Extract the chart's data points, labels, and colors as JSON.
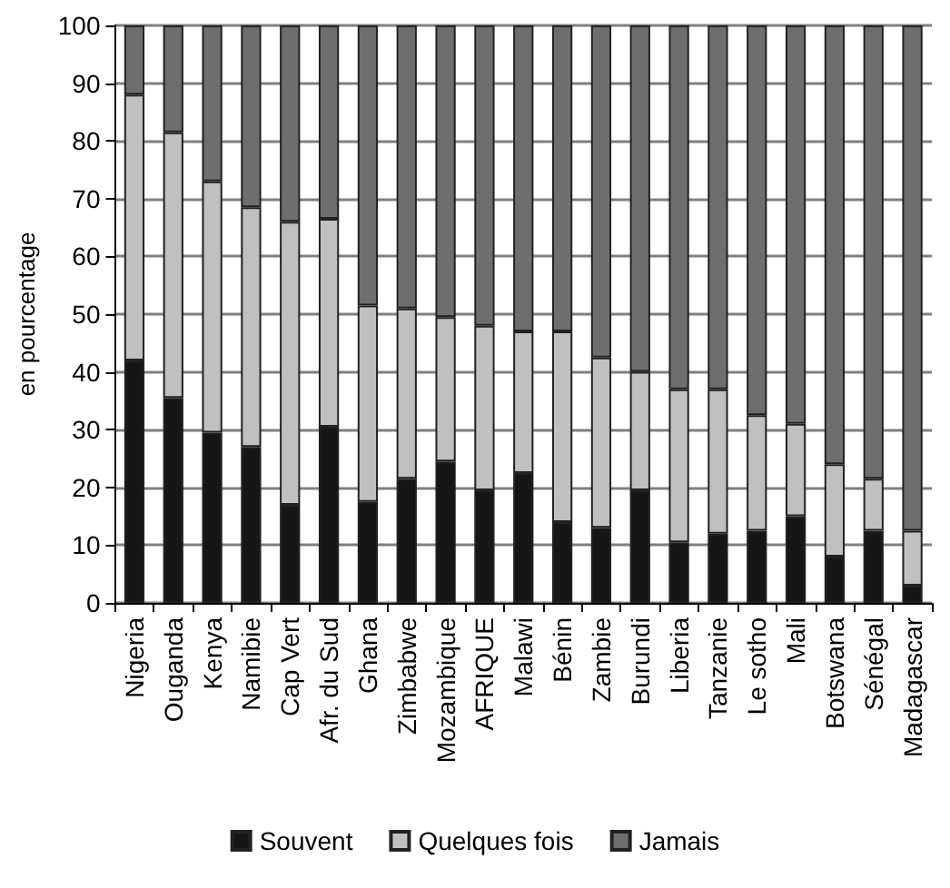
{
  "chart_data": {
    "type": "bar",
    "stacked": true,
    "ylabel": "en pourcentage",
    "categories": [
      "Nigeria",
      "Ouganda",
      "Kenya",
      "Namibie",
      "Cap Vert",
      "Afr. du Sud",
      "Ghana",
      "Zimbabwe",
      "Mozambique",
      "AFRIQUE",
      "Malawi",
      "Bénin",
      "Zambie",
      "Burundi",
      "Liberia",
      "Tanzanie",
      "Le sotho",
      "Mali",
      "Botswana",
      "Sénégal",
      "Madagascar"
    ],
    "series": [
      {
        "name": "Souvent",
        "color": "#161616",
        "values": [
          42,
          35.5,
          29.5,
          27,
          17,
          30.5,
          17.5,
          21.5,
          24.5,
          19.5,
          22.5,
          14,
          13,
          19.5,
          10.5,
          12,
          12.5,
          15,
          8,
          12.5,
          3
        ]
      },
      {
        "name": "Quelques fois",
        "color": "#c0c0c0",
        "values": [
          46,
          46,
          43.5,
          41.5,
          49,
          36,
          34,
          29.5,
          25,
          28.5,
          24.5,
          33,
          29.5,
          20.5,
          26.5,
          25,
          20,
          16,
          16,
          9,
          9.5
        ]
      },
      {
        "name": "Jamais",
        "color": "#6e6e6e",
        "values": [
          12,
          18.5,
          27,
          31.5,
          34,
          33.5,
          48.5,
          49,
          50.5,
          52,
          53,
          53,
          57.5,
          60,
          63,
          63,
          67.5,
          69,
          76,
          78.5,
          87.5
        ]
      }
    ],
    "ylim": [
      0,
      100
    ],
    "yticks": [
      0,
      10,
      20,
      30,
      40,
      50,
      60,
      70,
      80,
      90,
      100
    ],
    "grid": "y",
    "legend": "bottom"
  }
}
